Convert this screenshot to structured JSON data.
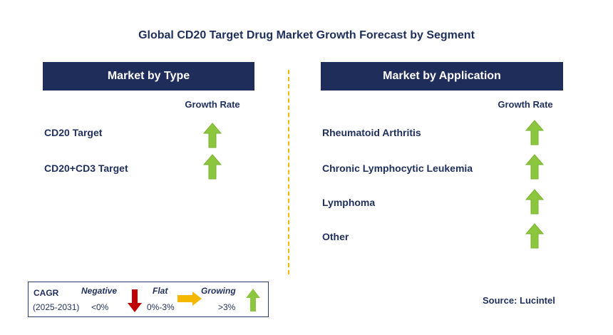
{
  "title": "Global CD20 Target Drug Market Growth Forecast by Segment",
  "left_panel": {
    "header": "Market by Type",
    "growth_rate_label": "Growth Rate",
    "rows": [
      {
        "label": "CD20 Target",
        "trend": "growing"
      },
      {
        "label": "CD20+CD3 Target",
        "trend": "growing"
      }
    ]
  },
  "right_panel": {
    "header": "Market by Application",
    "growth_rate_label": "Growth Rate",
    "rows": [
      {
        "label": "Rheumatoid Arthritis",
        "trend": "growing"
      },
      {
        "label": "Chronic Lymphocytic Leukemia",
        "trend": "growing"
      },
      {
        "label": "Lymphoma",
        "trend": "growing"
      },
      {
        "label": "Other",
        "trend": "growing"
      }
    ]
  },
  "legend": {
    "cagr_label": "CAGR",
    "period": "(2025-2031)",
    "negative_label": "Negative",
    "negative_range": "<0%",
    "flat_label": "Flat",
    "flat_range": "0%-3%",
    "growing_label": "Growing",
    "growing_range": ">3%"
  },
  "source": "Source: Lucintel",
  "colors": {
    "header_bg": "#1f2d5a",
    "text": "#1f2f5c",
    "growing_arrow": "#8cc63f",
    "negative_arrow": "#c00000",
    "flat_arrow": "#f5b800",
    "divider": "#f5b800"
  }
}
